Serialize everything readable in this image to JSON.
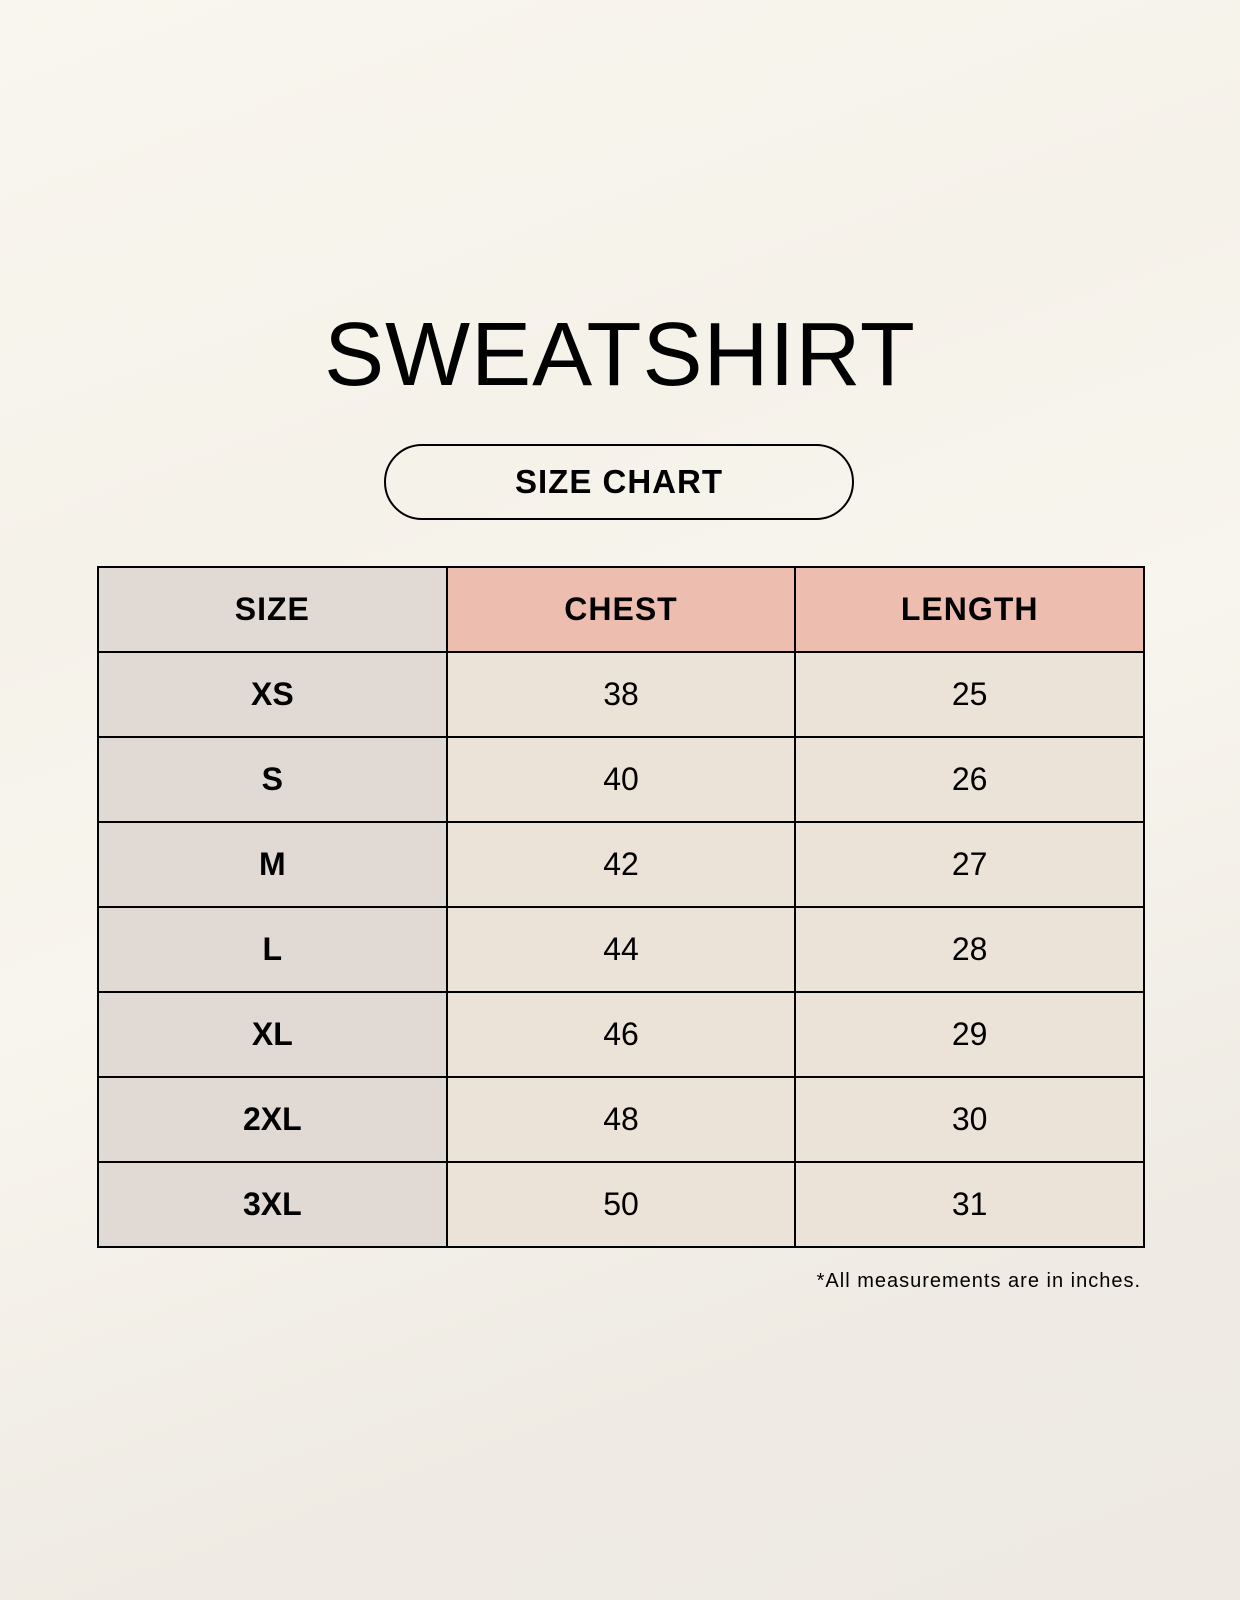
{
  "title": "SWEATSHIRT",
  "subtitle": "SIZE CHART",
  "table": {
    "headers": [
      "SIZE",
      "CHEST",
      "LENGTH"
    ],
    "rows": [
      [
        "XS",
        "38",
        "25"
      ],
      [
        "S",
        "40",
        "26"
      ],
      [
        "M",
        "42",
        "27"
      ],
      [
        "L",
        "44",
        "28"
      ],
      [
        "XL",
        "46",
        "29"
      ],
      [
        "2XL",
        "48",
        "30"
      ],
      [
        "3XL",
        "50",
        "31"
      ]
    ]
  },
  "footnote": "*All measurements are in inches.",
  "colors": {
    "size_column": "#e1d9d3",
    "header_highlight": "#edbdb0",
    "cell": "#ebe3d8"
  }
}
